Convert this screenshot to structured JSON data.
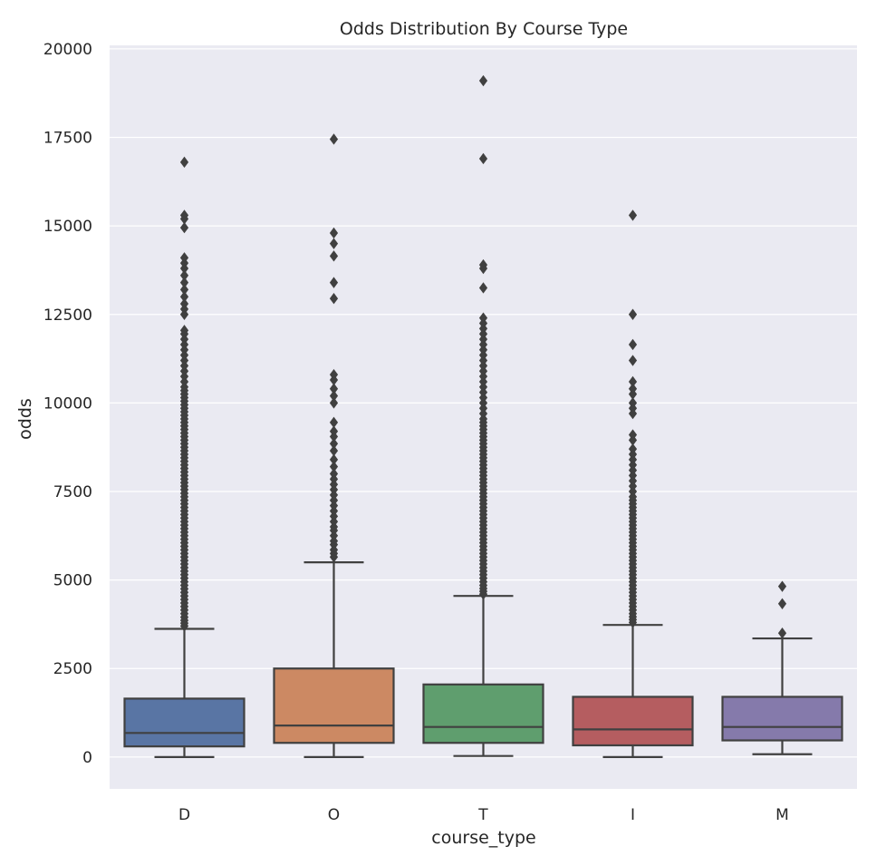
{
  "chart_data": {
    "type": "box",
    "title": "Odds Distribution By Course Type",
    "xlabel": "course_type",
    "ylabel": "odds",
    "ylim": [
      -900,
      20100
    ],
    "yticks": [
      0,
      2500,
      5000,
      7500,
      10000,
      12500,
      15000,
      17500,
      20000
    ],
    "grid": true,
    "colors": {
      "background": "#eaeaf2",
      "grid": "#ffffff",
      "line": "#404040"
    },
    "categories": [
      "D",
      "O",
      "T",
      "I",
      "M"
    ],
    "boxes": [
      {
        "category": "D",
        "color": "#5975a4",
        "whisker_low": 0,
        "q1": 300,
        "median": 680,
        "q3": 1650,
        "whisker_high": 3620,
        "outliers": [
          3700,
          3780,
          3860,
          3950,
          4050,
          4150,
          4250,
          4350,
          4450,
          4550,
          4650,
          4750,
          4850,
          4950,
          5050,
          5150,
          5250,
          5350,
          5450,
          5550,
          5650,
          5750,
          5850,
          5950,
          6050,
          6150,
          6250,
          6350,
          6450,
          6550,
          6650,
          6750,
          6850,
          6950,
          7050,
          7150,
          7250,
          7350,
          7450,
          7550,
          7650,
          7750,
          7850,
          7950,
          8050,
          8150,
          8250,
          8350,
          8450,
          8550,
          8650,
          8750,
          8850,
          8950,
          9050,
          9150,
          9250,
          9350,
          9450,
          9550,
          9650,
          9750,
          9850,
          9950,
          10050,
          10150,
          10250,
          10350,
          10450,
          10600,
          10750,
          10900,
          11050,
          11200,
          11350,
          11500,
          11650,
          11800,
          11950,
          12050,
          12500,
          12650,
          12800,
          13000,
          13200,
          13400,
          13600,
          13800,
          13950,
          14100,
          14950,
          15200,
          15300,
          16800
        ]
      },
      {
        "category": "O",
        "color": "#cc8963",
        "whisker_low": 0,
        "q1": 400,
        "median": 890,
        "q3": 2500,
        "whisker_high": 5500,
        "outliers": [
          5650,
          5750,
          5850,
          6000,
          6100,
          6250,
          6400,
          6500,
          6650,
          6800,
          6950,
          7100,
          7250,
          7400,
          7550,
          7700,
          7850,
          8000,
          8200,
          8400,
          8650,
          8850,
          9050,
          9200,
          9450,
          10000,
          10200,
          10400,
          10650,
          10800,
          12950,
          13400,
          14150,
          14500,
          14800,
          17450
        ]
      },
      {
        "category": "T",
        "color": "#5f9e6e",
        "whisker_low": 30,
        "q1": 400,
        "median": 850,
        "q3": 2050,
        "whisker_high": 4550,
        "outliers": [
          4600,
          4680,
          4760,
          4850,
          4950,
          5050,
          5150,
          5250,
          5350,
          5450,
          5550,
          5650,
          5750,
          5850,
          5950,
          6050,
          6150,
          6250,
          6350,
          6450,
          6550,
          6650,
          6750,
          6850,
          6950,
          7050,
          7150,
          7250,
          7350,
          7450,
          7550,
          7650,
          7750,
          7850,
          7950,
          8050,
          8150,
          8250,
          8350,
          8450,
          8550,
          8650,
          8750,
          8850,
          8950,
          9050,
          9150,
          9250,
          9350,
          9450,
          9550,
          9700,
          9850,
          10000,
          10150,
          10300,
          10450,
          10600,
          10750,
          10900,
          11050,
          11200,
          11350,
          11500,
          11650,
          11800,
          11950,
          12100,
          12250,
          12400,
          13250,
          13800,
          13900,
          16900,
          19100
        ]
      },
      {
        "category": "I",
        "color": "#b55d60",
        "whisker_low": 0,
        "q1": 330,
        "median": 780,
        "q3": 1700,
        "whisker_high": 3730,
        "outliers": [
          3800,
          3880,
          3960,
          4050,
          4150,
          4250,
          4350,
          4450,
          4550,
          4650,
          4750,
          4850,
          4950,
          5050,
          5150,
          5250,
          5350,
          5450,
          5550,
          5650,
          5750,
          5850,
          5950,
          6050,
          6150,
          6250,
          6350,
          6450,
          6550,
          6650,
          6750,
          6850,
          6950,
          7050,
          7150,
          7250,
          7350,
          7500,
          7650,
          7800,
          7950,
          8100,
          8250,
          8400,
          8550,
          8700,
          8950,
          9100,
          9700,
          9850,
          10000,
          10250,
          10400,
          10600,
          11200,
          11650,
          12500,
          15300
        ]
      },
      {
        "category": "M",
        "color": "#857aab",
        "whisker_low": 80,
        "q1": 470,
        "median": 850,
        "q3": 1700,
        "whisker_high": 3350,
        "outliers": [
          3500,
          4330,
          4820
        ]
      }
    ]
  }
}
